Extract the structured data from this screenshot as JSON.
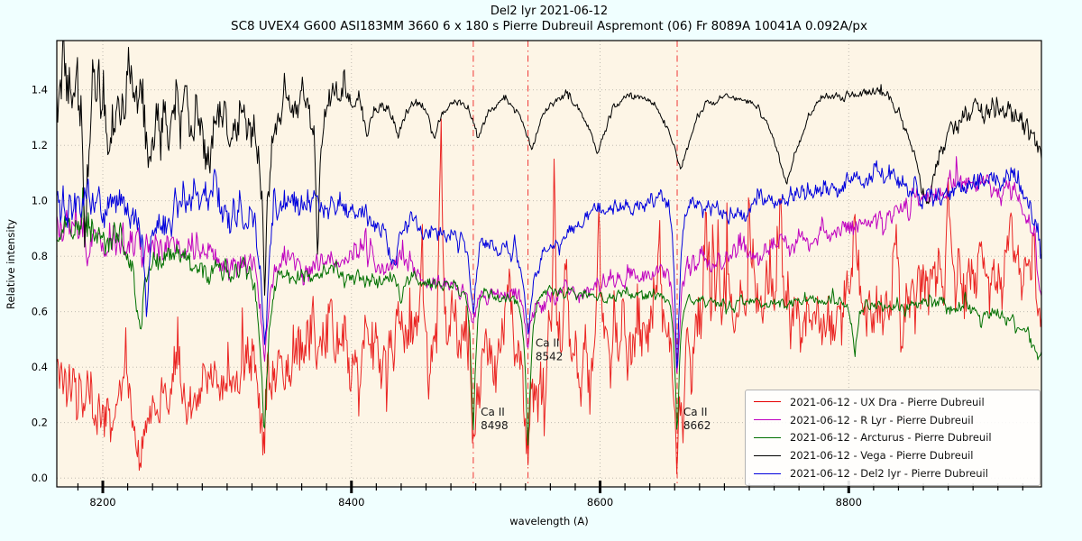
{
  "figure": {
    "title": "Del2 lyr 2021-06-12",
    "subtitle": "SC8 UVEX4 G600 ASI183MM 3660 6 x 180 s Pierre Dubreuil Aspremont (06) Fr 8089A 10041A 0.092A/px",
    "background_color": "#f0ffff",
    "plot_background_color": "#fdf5e6",
    "grid_color": "#b8b3aa",
    "spine_color": "#000000"
  },
  "chart_data": {
    "type": "line",
    "title": "Del2 lyr 2021-06-12",
    "xlabel": "wavelength (A)",
    "ylabel": "Relative intensity",
    "xlim": [
      8163,
      8955
    ],
    "ylim": [
      -0.032,
      1.578
    ],
    "x_ticks": [
      8200,
      8400,
      8600,
      8800
    ],
    "x_minor_step": 20,
    "y_ticks": [
      0.0,
      0.2,
      0.4,
      0.6,
      0.8,
      1.0,
      1.2,
      1.4
    ],
    "y_minor_step": 0.05,
    "grid": true,
    "legend_position": "lower-right",
    "marker_lines": {
      "color": "#ee2222",
      "style": "dashdot",
      "values": [
        8498,
        8542,
        8662
      ]
    },
    "annotations": [
      {
        "line1": "Ca II",
        "line2": "8498",
        "x": 8504,
        "y": 0.26
      },
      {
        "line1": "Ca II",
        "line2": "8542",
        "x": 8548,
        "y": 0.51
      },
      {
        "line1": "Ca II",
        "line2": "8662",
        "x": 8667,
        "y": 0.26
      }
    ],
    "series": [
      {
        "name": "UX Dra",
        "label": "2021-06-12 - UX Dra - Pierre Dubreuil",
        "color": "#e60000",
        "seed": 7,
        "tail": 0.8,
        "opacity": 0.85,
        "envelope": [
          [
            8163,
            0.4
          ],
          [
            8200,
            0.3
          ],
          [
            8240,
            0.27
          ],
          [
            8280,
            0.34
          ],
          [
            8330,
            0.33
          ],
          [
            8380,
            0.44
          ],
          [
            8430,
            0.5
          ],
          [
            8470,
            0.52
          ],
          [
            8510,
            0.47
          ],
          [
            8550,
            0.44
          ],
          [
            8600,
            0.48
          ],
          [
            8640,
            0.52
          ],
          [
            8680,
            0.56
          ],
          [
            8720,
            0.58
          ],
          [
            8760,
            0.61
          ],
          [
            8800,
            0.64
          ],
          [
            8840,
            0.7
          ],
          [
            8880,
            0.78
          ],
          [
            8920,
            0.8
          ],
          [
            8945,
            0.72
          ],
          [
            8955,
            0.58
          ]
        ],
        "noise": [
          [
            8163,
            0.11
          ],
          [
            8250,
            0.11
          ],
          [
            8350,
            0.13
          ],
          [
            8500,
            0.15
          ],
          [
            8650,
            0.14
          ],
          [
            8800,
            0.14
          ],
          [
            8900,
            0.14
          ],
          [
            8955,
            0.1
          ]
        ],
        "absorption_lines": [
          [
            8230,
            0.24,
            5
          ],
          [
            8330,
            0.3,
            4
          ],
          [
            8498,
            0.33,
            3
          ],
          [
            8542,
            0.38,
            3
          ],
          [
            8662,
            0.44,
            3
          ]
        ],
        "emission_peaks": [
          [
            8457,
            0.4,
            2
          ],
          [
            8472,
            0.66,
            2
          ],
          [
            8527,
            0.4,
            2
          ],
          [
            8563,
            0.55,
            2
          ],
          [
            8599,
            0.6,
            2
          ],
          [
            8648,
            0.4,
            2
          ],
          [
            8685,
            0.35,
            2
          ],
          [
            8745,
            0.32,
            2
          ],
          [
            8805,
            0.38,
            2
          ],
          [
            8838,
            0.32,
            2
          ],
          [
            8880,
            0.3,
            2
          ],
          [
            8930,
            0.28,
            2
          ]
        ]
      },
      {
        "name": "R Lyr",
        "label": "2021-06-12 - R Lyr - Pierre Dubreuil",
        "color": "#bf00bf",
        "seed": 13,
        "tail": 0.3,
        "opacity": 1,
        "envelope": [
          [
            8163,
            0.9
          ],
          [
            8200,
            0.86
          ],
          [
            8240,
            0.84
          ],
          [
            8280,
            0.82
          ],
          [
            8320,
            0.8
          ],
          [
            8360,
            0.79
          ],
          [
            8400,
            0.77
          ],
          [
            8440,
            0.74
          ],
          [
            8480,
            0.7
          ],
          [
            8520,
            0.65
          ],
          [
            8555,
            0.63
          ],
          [
            8590,
            0.68
          ],
          [
            8620,
            0.72
          ],
          [
            8650,
            0.75
          ],
          [
            8680,
            0.77
          ],
          [
            8710,
            0.79
          ],
          [
            8740,
            0.82
          ],
          [
            8770,
            0.86
          ],
          [
            8800,
            0.9
          ],
          [
            8830,
            0.94
          ],
          [
            8860,
            0.99
          ],
          [
            8890,
            1.02
          ],
          [
            8915,
            1.05
          ],
          [
            8935,
            1.02
          ],
          [
            8950,
            0.85
          ],
          [
            8955,
            0.64
          ]
        ],
        "noise": [
          [
            8163,
            0.095
          ],
          [
            8250,
            0.075
          ],
          [
            8350,
            0.05
          ],
          [
            8500,
            0.04
          ],
          [
            8700,
            0.045
          ],
          [
            8900,
            0.05
          ],
          [
            8955,
            0.05
          ]
        ],
        "absorption_lines": [
          [
            8330,
            0.38,
            5
          ],
          [
            8498,
            0.14,
            3
          ],
          [
            8542,
            0.16,
            3
          ],
          [
            8662,
            0.42,
            3
          ]
        ],
        "emission_peaks": []
      },
      {
        "name": "Arcturus",
        "label": "2021-06-12 - Arcturus - Pierre Dubreuil",
        "color": "#007000",
        "seed": 5,
        "tail": 0.25,
        "opacity": 1,
        "envelope": [
          [
            8163,
            0.88
          ],
          [
            8200,
            0.86
          ],
          [
            8240,
            0.8
          ],
          [
            8280,
            0.77
          ],
          [
            8330,
            0.745
          ],
          [
            8380,
            0.735
          ],
          [
            8430,
            0.71
          ],
          [
            8480,
            0.69
          ],
          [
            8530,
            0.66
          ],
          [
            8580,
            0.675
          ],
          [
            8630,
            0.655
          ],
          [
            8680,
            0.645
          ],
          [
            8730,
            0.635
          ],
          [
            8780,
            0.63
          ],
          [
            8830,
            0.625
          ],
          [
            8880,
            0.63
          ],
          [
            8915,
            0.6
          ],
          [
            8940,
            0.54
          ],
          [
            8955,
            0.42
          ]
        ],
        "noise": [
          [
            8163,
            0.085
          ],
          [
            8250,
            0.06
          ],
          [
            8350,
            0.042
          ],
          [
            8450,
            0.03
          ],
          [
            8600,
            0.026
          ],
          [
            8800,
            0.026
          ],
          [
            8900,
            0.038
          ],
          [
            8955,
            0.038
          ]
        ],
        "absorption_lines": [
          [
            8230,
            0.33,
            4
          ],
          [
            8330,
            0.58,
            4
          ],
          [
            8440,
            0.06,
            3
          ],
          [
            8498,
            0.5,
            2.6
          ],
          [
            8542,
            0.54,
            3
          ],
          [
            8662,
            0.5,
            2.6
          ],
          [
            8805,
            0.18,
            3
          ]
        ],
        "emission_peaks": []
      },
      {
        "name": "Vega",
        "label": "2021-06-12 - Vega - Pierre Dubreuil",
        "color": "#000000",
        "seed": 3,
        "tail": 0.35,
        "opacity": 1,
        "envelope": [
          [
            8163,
            1.33
          ],
          [
            8220,
            1.34
          ],
          [
            8300,
            1.34
          ],
          [
            8360,
            1.33
          ],
          [
            8420,
            1.36
          ],
          [
            8480,
            1.37
          ],
          [
            8540,
            1.37
          ],
          [
            8620,
            1.38
          ],
          [
            8700,
            1.38
          ],
          [
            8790,
            1.39
          ],
          [
            8850,
            1.4
          ],
          [
            8900,
            1.38
          ],
          [
            8930,
            1.33
          ],
          [
            8948,
            1.25
          ],
          [
            8955,
            1.1
          ]
        ],
        "noise": [
          [
            8163,
            0.15
          ],
          [
            8280,
            0.13
          ],
          [
            8340,
            0.1
          ],
          [
            8390,
            0.05
          ],
          [
            8430,
            0.03
          ],
          [
            8470,
            0.02
          ],
          [
            8600,
            0.015
          ],
          [
            8750,
            0.015
          ],
          [
            8850,
            0.025
          ],
          [
            8895,
            0.055
          ],
          [
            8955,
            0.06
          ]
        ],
        "absorption_lines": [
          [
            8186,
            0.45,
            3
          ],
          [
            8204,
            0.15,
            4
          ],
          [
            8238,
            0.22,
            4
          ],
          [
            8286,
            0.18,
            4
          ],
          [
            8330,
            0.6,
            4
          ],
          [
            8373,
            0.55,
            3
          ],
          [
            8413,
            0.12,
            5
          ],
          [
            8438,
            0.12,
            6
          ],
          [
            8467,
            0.13,
            7
          ],
          [
            8502,
            0.14,
            8
          ],
          [
            8545,
            0.18,
            9
          ],
          [
            8598,
            0.21,
            11
          ],
          [
            8665,
            0.27,
            12
          ],
          [
            8750,
            0.33,
            14
          ],
          [
            8863,
            0.4,
            16
          ]
        ],
        "emission_peaks": []
      },
      {
        "name": "Del2 lyr",
        "label": "2021-06-12 - Del2 lyr - Pierre Dubreuil",
        "color": "#0000dd",
        "seed": 29,
        "tail": 0.3,
        "opacity": 1,
        "envelope": [
          [
            8163,
            1.0
          ],
          [
            8200,
            0.99
          ],
          [
            8240,
            0.96
          ],
          [
            8280,
            0.97
          ],
          [
            8320,
            0.95
          ],
          [
            8360,
            0.99
          ],
          [
            8400,
            0.97
          ],
          [
            8430,
            0.92
          ],
          [
            8460,
            0.9
          ],
          [
            8490,
            0.88
          ],
          [
            8520,
            0.82
          ],
          [
            8550,
            0.8
          ],
          [
            8580,
            0.92
          ],
          [
            8610,
            0.97
          ],
          [
            8640,
            1.0
          ],
          [
            8670,
            1.0
          ],
          [
            8700,
            0.94
          ],
          [
            8730,
            0.98
          ],
          [
            8760,
            1.01
          ],
          [
            8790,
            1.05
          ],
          [
            8820,
            1.09
          ],
          [
            8850,
            1.05
          ],
          [
            8880,
            1.01
          ],
          [
            8910,
            1.07
          ],
          [
            8935,
            1.05
          ],
          [
            8950,
            0.92
          ],
          [
            8955,
            0.8
          ]
        ],
        "noise": [
          [
            8163,
            0.085
          ],
          [
            8300,
            0.075
          ],
          [
            8400,
            0.05
          ],
          [
            8500,
            0.04
          ],
          [
            8600,
            0.035
          ],
          [
            8700,
            0.035
          ],
          [
            8800,
            0.045
          ],
          [
            8900,
            0.05
          ],
          [
            8955,
            0.045
          ]
        ],
        "absorption_lines": [
          [
            8235,
            0.32,
            4
          ],
          [
            8330,
            0.52,
            4
          ],
          [
            8435,
            0.12,
            3
          ],
          [
            8498,
            0.3,
            3
          ],
          [
            8542,
            0.3,
            4
          ],
          [
            8662,
            0.62,
            3
          ]
        ],
        "emission_peaks": []
      }
    ]
  }
}
